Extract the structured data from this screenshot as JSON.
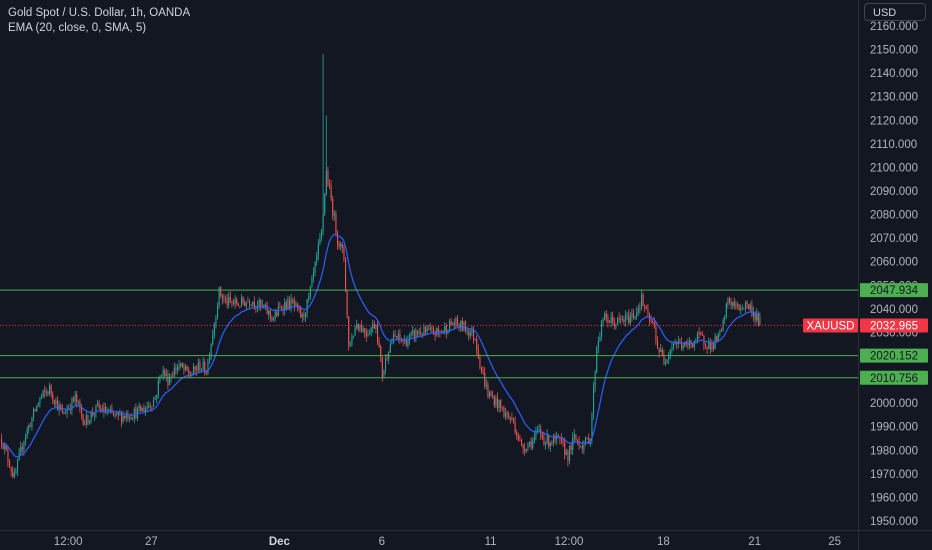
{
  "legend": {
    "line1": "Gold Spot / U.S. Dollar, 1h, OANDA",
    "line2": "EMA (20, close, 0, SMA, 5)"
  },
  "currency_button": "USD",
  "colors": {
    "background": "#131722",
    "up": "#26a69a",
    "down": "#ef5350",
    "ema": "#2962ff",
    "level": "#4caf50",
    "current": "#f23645",
    "text": "#b2b5be"
  },
  "chart_data": {
    "type": "candlestick",
    "symbol": "XAUUSD",
    "ylim": [
      1944,
      2166
    ],
    "y_ticks": [
      "1950.000",
      "1960.000",
      "1970.000",
      "1980.000",
      "1990.000",
      "2000.000",
      "2010.000",
      "2020.000",
      "2030.000",
      "2040.000",
      "2050.000",
      "2060.000",
      "2070.000",
      "2080.000",
      "2090.000",
      "2100.000",
      "2110.000",
      "2120.000",
      "2130.000",
      "2140.000",
      "2150.000",
      "2160.000"
    ],
    "x_ticks": [
      {
        "label": "12:00",
        "bar": 42,
        "bold": false
      },
      {
        "label": "27",
        "bar": 94,
        "bold": false
      },
      {
        "label": "Dec",
        "bar": 174,
        "bold": true
      },
      {
        "label": "6",
        "bar": 238,
        "bold": false
      },
      {
        "label": "11",
        "bar": 306,
        "bold": false
      },
      {
        "label": "12:00",
        "bar": 355,
        "bold": false
      },
      {
        "label": "18",
        "bar": 414,
        "bold": false
      },
      {
        "label": "21",
        "bar": 471,
        "bold": false
      },
      {
        "label": "25",
        "bar": 521,
        "bold": false
      }
    ],
    "levels": [
      {
        "label": "2047.934",
        "value": 2047.934
      },
      {
        "label": "2020.152",
        "value": 2020.152
      },
      {
        "label": "2010.756",
        "value": 2010.756
      }
    ],
    "current": {
      "symbol": "XAUUSD",
      "label": "2032.965",
      "value": 2032.965
    },
    "path_knots": [
      [
        0,
        1985
      ],
      [
        8,
        1968
      ],
      [
        14,
        1985
      ],
      [
        24,
        2002
      ],
      [
        30,
        2006
      ],
      [
        38,
        1995
      ],
      [
        46,
        2002
      ],
      [
        52,
        1992
      ],
      [
        60,
        1998
      ],
      [
        72,
        1994
      ],
      [
        84,
        1996
      ],
      [
        90,
        1998
      ],
      [
        96,
        2002
      ],
      [
        100,
        2014
      ],
      [
        104,
        2010
      ],
      [
        110,
        2016
      ],
      [
        118,
        2012
      ],
      [
        124,
        2016
      ],
      [
        128,
        2014
      ],
      [
        132,
        2030
      ],
      [
        136,
        2047
      ],
      [
        140,
        2043
      ],
      [
        148,
        2042
      ],
      [
        156,
        2044
      ],
      [
        164,
        2040
      ],
      [
        170,
        2036
      ],
      [
        176,
        2042
      ],
      [
        182,
        2042
      ],
      [
        188,
        2036
      ],
      [
        192,
        2044
      ],
      [
        196,
        2058
      ],
      [
        200,
        2072
      ],
      [
        203,
        2098
      ],
      [
        206,
        2086
      ],
      [
        210,
        2070
      ],
      [
        214,
        2062
      ],
      [
        217,
        2024
      ],
      [
        222,
        2034
      ],
      [
        228,
        2030
      ],
      [
        234,
        2034
      ],
      [
        238,
        2012
      ],
      [
        242,
        2024
      ],
      [
        246,
        2028
      ],
      [
        252,
        2026
      ],
      [
        260,
        2030
      ],
      [
        268,
        2030
      ],
      [
        274,
        2030
      ],
      [
        278,
        2032
      ],
      [
        282,
        2034
      ],
      [
        290,
        2032
      ],
      [
        296,
        2028
      ],
      [
        300,
        2014
      ],
      [
        304,
        2004
      ],
      [
        310,
        2000
      ],
      [
        314,
        1996
      ],
      [
        320,
        1992
      ],
      [
        325,
        1981
      ],
      [
        332,
        1984
      ],
      [
        336,
        1988
      ],
      [
        340,
        1984
      ],
      [
        348,
        1984
      ],
      [
        354,
        1978
      ],
      [
        358,
        1985
      ],
      [
        364,
        1982
      ],
      [
        368,
        1986
      ],
      [
        372,
        2024
      ],
      [
        376,
        2036
      ],
      [
        384,
        2034
      ],
      [
        392,
        2036
      ],
      [
        396,
        2038
      ],
      [
        400,
        2044
      ],
      [
        404,
        2036
      ],
      [
        408,
        2032
      ],
      [
        410,
        2024
      ],
      [
        414,
        2018
      ],
      [
        420,
        2026
      ],
      [
        428,
        2024
      ],
      [
        436,
        2028
      ],
      [
        444,
        2024
      ],
      [
        450,
        2030
      ],
      [
        454,
        2044
      ],
      [
        460,
        2040
      ],
      [
        466,
        2042
      ],
      [
        470,
        2038
      ],
      [
        474,
        2034
      ]
    ],
    "spikes": [
      {
        "bar": 201,
        "high": 2148
      },
      {
        "bar": 203,
        "high": 2122
      }
    ]
  }
}
